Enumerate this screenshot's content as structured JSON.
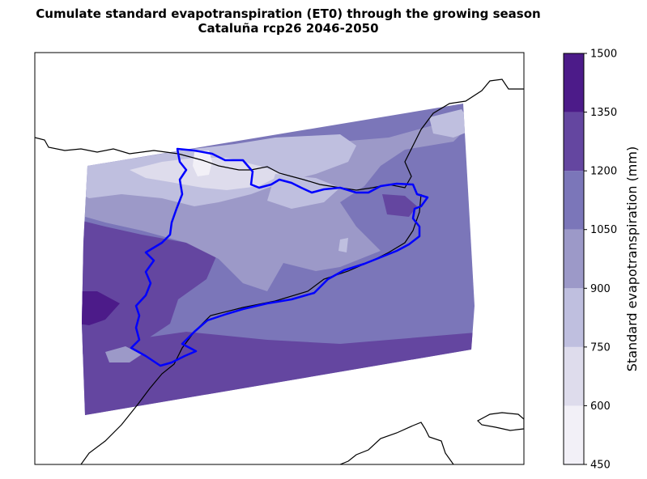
{
  "title_line1": "Cumulate standard evapotranspiration (ET0) through the growing season",
  "title_line2": "Cataluña rcp26 2046-2050",
  "colorbar": {
    "label": "Standard evapotranspiration (mm)",
    "ticks": [
      "450",
      "600",
      "750",
      "900",
      "1050",
      "1200",
      "1350",
      "1500"
    ],
    "levels": [
      450,
      600,
      750,
      900,
      1050,
      1200,
      1350,
      1500
    ],
    "colors": [
      "#f2f0f7",
      "#dedcec",
      "#bfbfdf",
      "#9c99c8",
      "#7b76b9",
      "#6446a0",
      "#4c1b89"
    ]
  },
  "chart_data": {
    "type": "heatmap",
    "title": "Cumulate standard evapotranspiration (ET0) through the growing season",
    "subtitle": "Cataluña rcp26 2046-2050",
    "colorbar_label": "Standard evapotranspiration (mm)",
    "colorbar_range": [
      450,
      1500
    ],
    "contour_levels": [
      450,
      600,
      750,
      900,
      1050,
      1200,
      1350,
      1500
    ],
    "spatial_pattern": "lowest (450-750 mm) in the northern Pyrenees band, 900-1200 mm across central Catalonia and the coast, highest (1200-1500 mm) in the south-west and southern coastal strip",
    "region_outline": "Cataluña"
  }
}
